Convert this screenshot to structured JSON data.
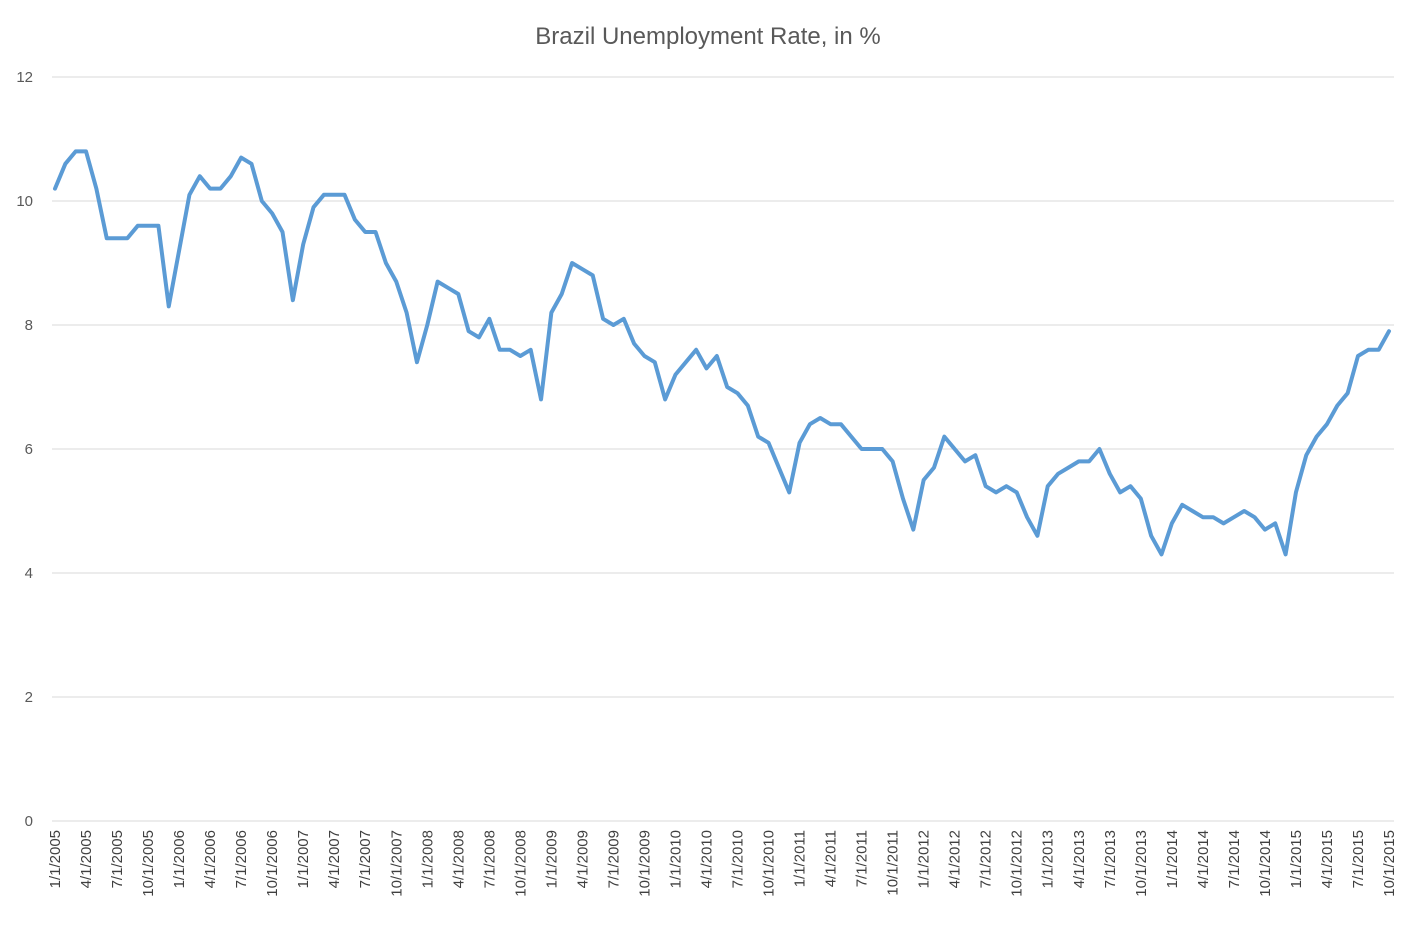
{
  "colors": {
    "series": "#5b9bd5",
    "grid": "#d9d9d9",
    "text": "#595959"
  },
  "chart_data": {
    "type": "line",
    "title": "Brazil Unemployment Rate, in %",
    "xlabel": "",
    "ylabel": "",
    "ylim": [
      0,
      12
    ],
    "y_ticks": [
      0,
      2,
      4,
      6,
      8,
      10,
      12
    ],
    "grid": true,
    "legend": "none",
    "x": [
      "1/1/2005",
      "2/1/2005",
      "3/1/2005",
      "4/1/2005",
      "5/1/2005",
      "6/1/2005",
      "7/1/2005",
      "8/1/2005",
      "9/1/2005",
      "10/1/2005",
      "11/1/2005",
      "12/1/2005",
      "1/1/2006",
      "2/1/2006",
      "3/1/2006",
      "4/1/2006",
      "5/1/2006",
      "6/1/2006",
      "7/1/2006",
      "8/1/2006",
      "9/1/2006",
      "10/1/2006",
      "11/1/2006",
      "12/1/2006",
      "1/1/2007",
      "2/1/2007",
      "3/1/2007",
      "4/1/2007",
      "5/1/2007",
      "6/1/2007",
      "7/1/2007",
      "8/1/2007",
      "9/1/2007",
      "10/1/2007",
      "11/1/2007",
      "12/1/2007",
      "1/1/2008",
      "2/1/2008",
      "3/1/2008",
      "4/1/2008",
      "5/1/2008",
      "6/1/2008",
      "7/1/2008",
      "8/1/2008",
      "9/1/2008",
      "10/1/2008",
      "11/1/2008",
      "12/1/2008",
      "1/1/2009",
      "2/1/2009",
      "3/1/2009",
      "4/1/2009",
      "5/1/2009",
      "6/1/2009",
      "7/1/2009",
      "8/1/2009",
      "9/1/2009",
      "10/1/2009",
      "11/1/2009",
      "12/1/2009",
      "1/1/2010",
      "2/1/2010",
      "3/1/2010",
      "4/1/2010",
      "5/1/2010",
      "6/1/2010",
      "7/1/2010",
      "8/1/2010",
      "9/1/2010",
      "10/1/2010",
      "11/1/2010",
      "12/1/2010",
      "1/1/2011",
      "2/1/2011",
      "3/1/2011",
      "4/1/2011",
      "5/1/2011",
      "6/1/2011",
      "7/1/2011",
      "8/1/2011",
      "9/1/2011",
      "10/1/2011",
      "11/1/2011",
      "12/1/2011",
      "1/1/2012",
      "2/1/2012",
      "3/1/2012",
      "4/1/2012",
      "5/1/2012",
      "6/1/2012",
      "7/1/2012",
      "8/1/2012",
      "9/1/2012",
      "10/1/2012",
      "11/1/2012",
      "12/1/2012",
      "1/1/2013",
      "2/1/2013",
      "3/1/2013",
      "4/1/2013",
      "5/1/2013",
      "6/1/2013",
      "7/1/2013",
      "8/1/2013",
      "9/1/2013",
      "10/1/2013",
      "11/1/2013",
      "12/1/2013",
      "1/1/2014",
      "2/1/2014",
      "3/1/2014",
      "4/1/2014",
      "5/1/2014",
      "6/1/2014",
      "7/1/2014",
      "8/1/2014",
      "9/1/2014",
      "10/1/2014",
      "11/1/2014",
      "12/1/2014",
      "1/1/2015",
      "2/1/2015",
      "3/1/2015",
      "4/1/2015",
      "5/1/2015",
      "6/1/2015",
      "7/1/2015",
      "8/1/2015",
      "9/1/2015",
      "10/1/2015"
    ],
    "x_tick_labels": [
      "1/1/2005",
      "4/1/2005",
      "7/1/2005",
      "10/1/2005",
      "1/1/2006",
      "4/1/2006",
      "7/1/2006",
      "10/1/2006",
      "1/1/2007",
      "4/1/2007",
      "7/1/2007",
      "10/1/2007",
      "1/1/2008",
      "4/1/2008",
      "7/1/2008",
      "10/1/2008",
      "1/1/2009",
      "4/1/2009",
      "7/1/2009",
      "10/1/2009",
      "1/1/2010",
      "4/1/2010",
      "7/1/2010",
      "10/1/2010",
      "1/1/2011",
      "4/1/2011",
      "7/1/2011",
      "10/1/2011",
      "1/1/2012",
      "4/1/2012",
      "7/1/2012",
      "10/1/2012",
      "1/1/2013",
      "4/1/2013",
      "7/1/2013",
      "10/1/2013",
      "1/1/2014",
      "4/1/2014",
      "7/1/2014",
      "10/1/2014",
      "1/1/2015",
      "4/1/2015",
      "7/1/2015",
      "10/1/2015"
    ],
    "series": [
      {
        "values": [
          10.2,
          10.6,
          10.8,
          10.8,
          10.2,
          9.4,
          9.4,
          9.4,
          9.6,
          9.6,
          9.6,
          8.3,
          9.2,
          10.1,
          10.4,
          10.2,
          10.2,
          10.4,
          10.7,
          10.6,
          10.0,
          9.8,
          9.5,
          8.4,
          9.3,
          9.9,
          10.1,
          10.1,
          10.1,
          9.7,
          9.5,
          9.5,
          9.0,
          8.7,
          8.2,
          7.4,
          8.0,
          8.7,
          8.6,
          8.5,
          7.9,
          7.8,
          8.1,
          7.6,
          7.6,
          7.5,
          7.6,
          6.8,
          8.2,
          8.5,
          9.0,
          8.9,
          8.8,
          8.1,
          8.0,
          8.1,
          7.7,
          7.5,
          7.4,
          6.8,
          7.2,
          7.4,
          7.6,
          7.3,
          7.5,
          7.0,
          6.9,
          6.7,
          6.2,
          6.1,
          5.7,
          5.3,
          6.1,
          6.4,
          6.5,
          6.4,
          6.4,
          6.2,
          6.0,
          6.0,
          6.0,
          5.8,
          5.2,
          4.7,
          5.5,
          5.7,
          6.2,
          6.0,
          5.8,
          5.9,
          5.4,
          5.3,
          5.4,
          5.3,
          4.9,
          4.6,
          5.4,
          5.6,
          5.7,
          5.8,
          5.8,
          6.0,
          5.6,
          5.3,
          5.4,
          5.2,
          4.6,
          4.3,
          4.8,
          5.1,
          5.0,
          4.9,
          4.9,
          4.8,
          4.9,
          5.0,
          4.9,
          4.7,
          4.8,
          4.3,
          5.3,
          5.9,
          6.2,
          6.4,
          6.7,
          6.9,
          7.5,
          7.6,
          7.6,
          7.9
        ]
      }
    ]
  }
}
